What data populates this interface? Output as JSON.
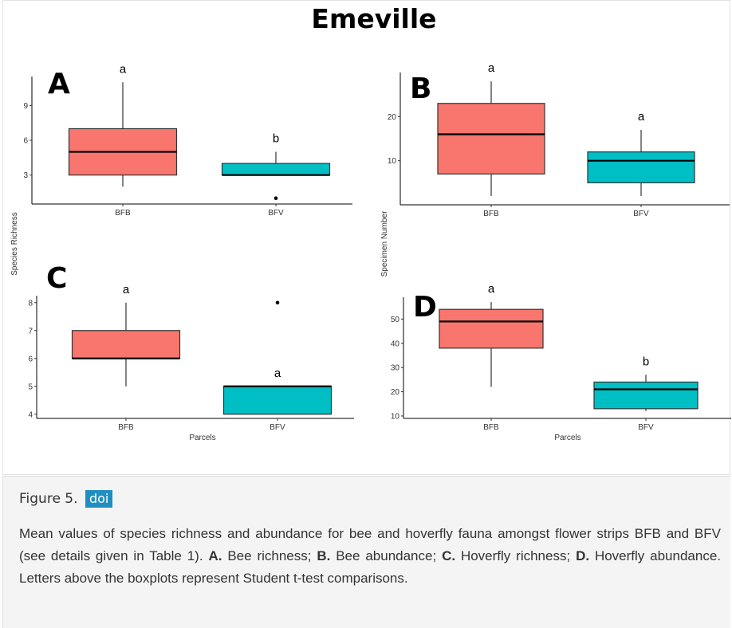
{
  "figure": {
    "title": "Emeville",
    "y_label_left": "Species Richness",
    "y_label_right": "Specimen Number",
    "x_label": "Parcels"
  },
  "caption": {
    "figure_label": "Figure 5.",
    "doi_label": "doi",
    "intro": "Mean values of species richness and abundance for bee and hoverfly fauna amongst flower strips BFB and BFV (see details given in Table 1).",
    "parts": [
      {
        "letter": "A.",
        "text": "Bee richness;"
      },
      {
        "letter": "B.",
        "text": "Bee abundance;"
      },
      {
        "letter": "C.",
        "text": "Hoverfly richness;"
      },
      {
        "letter": "D.",
        "text": "Hoverfly abundance."
      }
    ],
    "outro": "Letters above the boxplots represent Student t-test comparisons."
  },
  "colors": {
    "bfb_fill": "#f8766d",
    "bfv_fill": "#00bfc4",
    "doi_badge": "#1f8fbf"
  },
  "chart_data": [
    {
      "panel": "A",
      "type": "boxplot",
      "categories": [
        "BFB",
        "BFV"
      ],
      "yticks": [
        3,
        6,
        9
      ],
      "ylim": [
        0.5,
        11.5
      ],
      "boxes": [
        {
          "category": "BFB",
          "min": 2,
          "q1": 3,
          "median": 5,
          "q3": 7,
          "max": 11,
          "outliers": [],
          "letter": "a"
        },
        {
          "category": "BFV",
          "min": 3,
          "q1": 3,
          "median": 3,
          "q3": 4,
          "max": 5,
          "outliers": [
            1
          ],
          "letter": "b"
        }
      ]
    },
    {
      "panel": "B",
      "type": "boxplot",
      "categories": [
        "BFB",
        "BFV"
      ],
      "yticks": [
        10,
        20
      ],
      "ylim": [
        0,
        30
      ],
      "boxes": [
        {
          "category": "BFB",
          "min": 2,
          "q1": 7,
          "median": 16,
          "q3": 23,
          "max": 28,
          "outliers": [],
          "letter": "a"
        },
        {
          "category": "BFV",
          "min": 2,
          "q1": 5,
          "median": 10,
          "q3": 12,
          "max": 17,
          "outliers": [],
          "letter": "a"
        }
      ]
    },
    {
      "panel": "C",
      "type": "boxplot",
      "categories": [
        "BFB",
        "BFV"
      ],
      "yticks": [
        4,
        5,
        6,
        7,
        8
      ],
      "ylim": [
        3.85,
        8.25
      ],
      "boxes": [
        {
          "category": "BFB",
          "min": 5,
          "q1": 6,
          "median": 6,
          "q3": 7,
          "max": 8,
          "outliers": [],
          "letter": "a"
        },
        {
          "category": "BFV",
          "min": 4,
          "q1": 4,
          "median": 5,
          "q3": 5,
          "max": 5,
          "outliers": [
            8
          ],
          "letter": "a"
        }
      ]
    },
    {
      "panel": "D",
      "type": "boxplot",
      "categories": [
        "BFB",
        "BFV"
      ],
      "yticks": [
        10,
        20,
        30,
        40,
        50
      ],
      "ylim": [
        9,
        59
      ],
      "boxes": [
        {
          "category": "BFB",
          "min": 22,
          "q1": 38,
          "median": 49,
          "q3": 54,
          "max": 57,
          "outliers": [],
          "letter": "a"
        },
        {
          "category": "BFV",
          "min": 12,
          "q1": 13,
          "median": 21,
          "q3": 24,
          "max": 27,
          "outliers": [],
          "letter": "b"
        }
      ]
    }
  ]
}
